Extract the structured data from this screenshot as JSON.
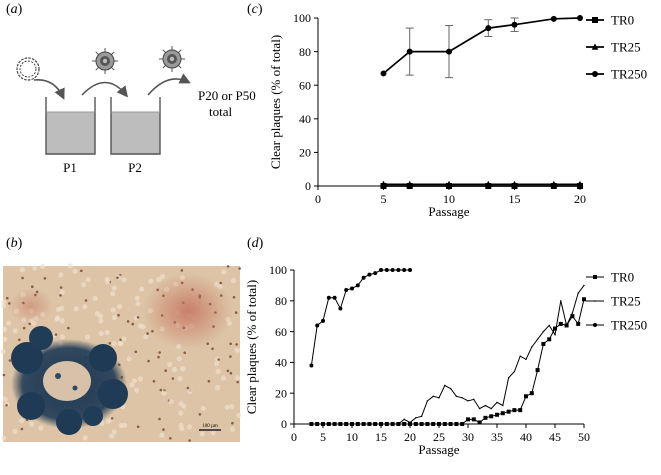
{
  "panels": {
    "a": {
      "label": "a"
    },
    "b": {
      "label": "b"
    },
    "c": {
      "label": "c"
    },
    "d": {
      "label": "d"
    }
  },
  "schematic": {
    "vessel1": "P1",
    "vessel2": "P2",
    "endpoint_line1": "P20 or P50",
    "endpoint_line2": "total"
  },
  "micrograph": {
    "scalebar_text": "100 µm",
    "colors": {
      "background": "#ddc4a6",
      "stain_blue": "#1e3a55",
      "stain_red": "#c4735d"
    }
  },
  "chart_data": [
    {
      "id": "c",
      "type": "line",
      "xlabel": "Passage",
      "ylabel": "Clear plaques (% of total)",
      "xlim": [
        0,
        20
      ],
      "ylim": [
        0,
        100
      ],
      "xticks": [
        0,
        5,
        10,
        15,
        20
      ],
      "yticks": [
        0,
        20,
        40,
        60,
        80,
        100
      ],
      "legend_position": "right",
      "series": [
        {
          "name": "TR0",
          "marker": "square",
          "x": [
            5,
            7,
            10,
            13,
            15,
            18,
            20
          ],
          "y": [
            0,
            0,
            0,
            0,
            0,
            0,
            0
          ]
        },
        {
          "name": "TR25",
          "marker": "triangle",
          "x": [
            5,
            7,
            10,
            13,
            15,
            18,
            20
          ],
          "y": [
            1,
            1,
            1,
            1,
            1,
            1,
            1
          ]
        },
        {
          "name": "TR250",
          "marker": "circle",
          "x": [
            5,
            7,
            10,
            13,
            15,
            18,
            20
          ],
          "y": [
            67,
            80,
            80,
            94,
            96,
            99.5,
            100
          ],
          "err": [
            0,
            14,
            15.5,
            5,
            4,
            0,
            0
          ]
        }
      ]
    },
    {
      "id": "d",
      "type": "line",
      "xlabel": "Passage",
      "ylabel": "Clear plaques (% of total)",
      "xlim": [
        0,
        50
      ],
      "ylim": [
        0,
        100
      ],
      "xticks": [
        0,
        5,
        10,
        15,
        20,
        25,
        30,
        35,
        40,
        45,
        50
      ],
      "yticks": [
        0,
        20,
        40,
        60,
        80,
        100
      ],
      "legend_position": "right",
      "series": [
        {
          "name": "TR0",
          "marker": "square",
          "x": [
            3,
            4,
            5,
            6,
            7,
            8,
            9,
            10,
            11,
            12,
            13,
            14,
            15,
            16,
            17,
            18,
            19,
            20,
            21,
            22,
            23,
            24,
            25,
            26,
            27,
            28,
            29,
            30,
            31,
            32,
            33,
            34,
            35,
            36,
            37,
            38,
            39,
            40,
            41,
            42,
            43,
            44,
            45,
            46,
            47,
            48,
            49,
            50
          ],
          "y": [
            0,
            0,
            0,
            0,
            0,
            0,
            0,
            0,
            0,
            0,
            0,
            0,
            0,
            0,
            0,
            0,
            0,
            0,
            0,
            0,
            0,
            0,
            0,
            0,
            0,
            0,
            0,
            3,
            3,
            1,
            4,
            5,
            6,
            7,
            8,
            9,
            9,
            18,
            20,
            35,
            52,
            55,
            62,
            65,
            64,
            70,
            65,
            81
          ]
        },
        {
          "name": "TR25",
          "marker": "none",
          "x": [
            3,
            4,
            5,
            6,
            7,
            8,
            9,
            10,
            11,
            12,
            13,
            14,
            15,
            16,
            17,
            18,
            19,
            20,
            21,
            22,
            23,
            24,
            25,
            26,
            27,
            28,
            29,
            30,
            31,
            32,
            33,
            34,
            35,
            36,
            37,
            38,
            39,
            40,
            41,
            42,
            43,
            44,
            45,
            46,
            47,
            48,
            49,
            50
          ],
          "y": [
            0,
            0,
            0,
            0,
            0,
            0,
            0,
            0,
            0,
            0,
            0,
            0,
            0,
            0,
            0,
            0,
            3,
            1,
            4,
            5,
            15,
            18,
            17,
            25,
            23,
            18,
            17,
            15,
            16,
            10,
            12,
            10,
            14,
            12,
            30,
            34,
            44,
            42,
            50,
            55,
            60,
            64,
            58,
            80,
            64,
            72,
            85,
            90
          ]
        },
        {
          "name": "TR250",
          "marker": "circle",
          "x": [
            3,
            4,
            5,
            6,
            7,
            8,
            9,
            10,
            11,
            12,
            13,
            14,
            15,
            16,
            17,
            18,
            19,
            20
          ],
          "y": [
            38,
            64,
            67,
            82,
            82,
            75,
            87,
            88,
            90,
            95,
            97,
            98,
            100,
            100,
            100,
            100,
            100,
            100
          ]
        }
      ]
    }
  ]
}
